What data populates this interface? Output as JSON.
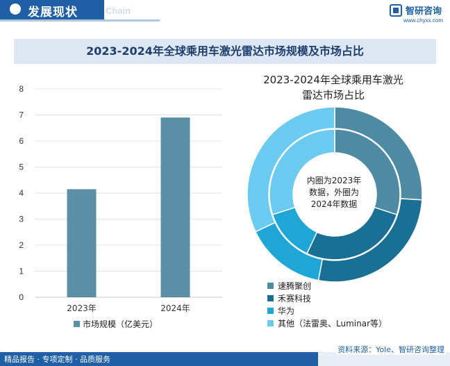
{
  "header": {
    "section_title": "发展现状",
    "section_title_en": "Chain",
    "brand_name": "智研咨询",
    "brand_url": "www.chyxx.com"
  },
  "figure_title": "2023-2024年全球乘用车激光雷达市场规模及市场占比",
  "chart_data": [
    {
      "type": "bar",
      "categories": [
        "2023年",
        "2024年"
      ],
      "series": [
        {
          "name": "市场规模（亿美元）",
          "values": [
            4.15,
            6.9
          ],
          "color": "#5b8fa6"
        }
      ],
      "ylim": [
        0,
        8
      ],
      "yticks": [
        "0",
        "1",
        "2",
        "3",
        "4",
        "5",
        "6",
        "7",
        "8"
      ],
      "grid": true,
      "legend": "bottom"
    },
    {
      "type": "pie",
      "title": "2023-2024年全球乘用车激光雷达市场占比",
      "title_lines": [
        "2023-2024年全球乘用车激光",
        "雷达市场占比"
      ],
      "center_note_lines": [
        "内圈为2023年",
        "数据，外圈为",
        "2024年数据"
      ],
      "categories": [
        "速腾聚创",
        "禾赛科技",
        "华为",
        "其他（法雷奥、Luminar等）"
      ],
      "colors": [
        "#4f8aa3",
        "#1a6f94",
        "#1ea6d6",
        "#6ccaf0"
      ],
      "inner_2023": [
        30,
        27,
        13,
        30
      ],
      "outer_2024": [
        26,
        27,
        15,
        32
      ],
      "legend": "bottom"
    }
  ],
  "footer": {
    "left_text": "精品报告 · 专项定制 · 品质服务",
    "source_text": "资料来源：Yole、智研咨询整理"
  }
}
